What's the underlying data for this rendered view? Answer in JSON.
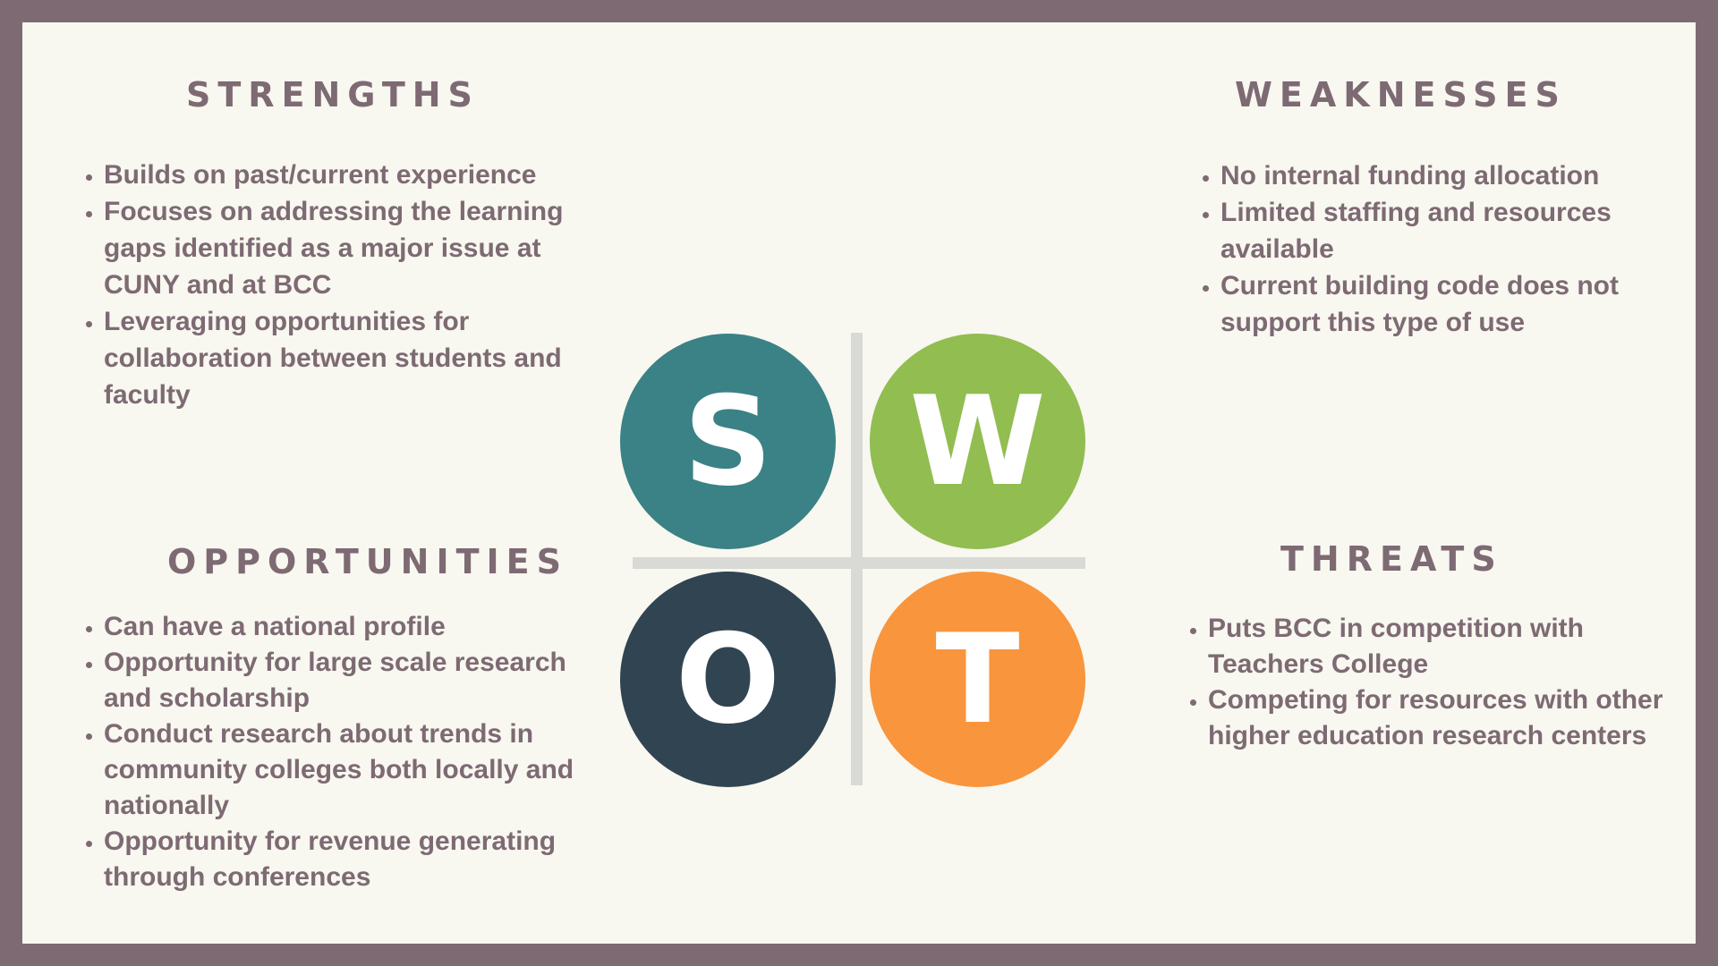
{
  "colors": {
    "frame": "#7d6a73",
    "panel": "#f8f7f0",
    "text": "#7d6a73",
    "divider": "#d9d9d6",
    "strengths": "#3a8285",
    "weaknesses": "#92bd51",
    "opportunities": "#314452",
    "threats": "#f9953c"
  },
  "strengths": {
    "title": "STRENGTHS",
    "letter": "S",
    "items": [
      "Builds on past/current experience",
      "Focuses on addressing the learning gaps identified as a major issue at CUNY and at BCC",
      "Leveraging opportunities for collaboration between students and faculty"
    ]
  },
  "weaknesses": {
    "title": "WEAKNESSES",
    "letter": "W",
    "items": [
      "No internal funding allocation",
      "Limited staffing and resources available",
      "Current building code does not support this type of use"
    ]
  },
  "opportunities": {
    "title": "OPPORTUNITIES",
    "letter": "O",
    "items": [
      "Can have a national profile",
      "Opportunity for large scale research and scholarship",
      "Conduct research about trends in community colleges both locally and nationally",
      "Opportunity for revenue generating through conferences"
    ]
  },
  "threats": {
    "title": "THREATS",
    "letter": "T",
    "items": [
      "Puts BCC in competition with Teachers College",
      "Competing for resources with other higher education research centers"
    ]
  }
}
